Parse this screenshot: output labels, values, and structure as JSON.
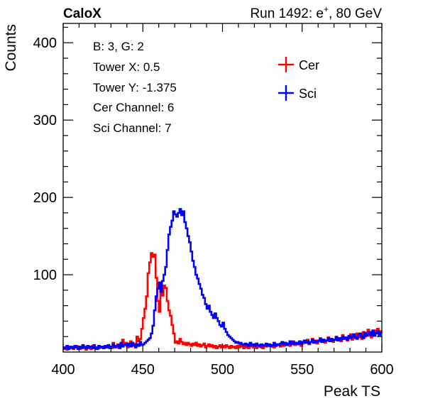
{
  "header": {
    "brand": "CaloX",
    "run_label": "Run 1492: e",
    "run_sup": "+",
    "run_energy": ", 80 GeV"
  },
  "info_box": {
    "lines": [
      "B: 3, G: 2",
      "Tower X: 0.5",
      "Tower Y: -1.375",
      "Cer Channel: 6",
      "Sci Channel: 7"
    ]
  },
  "colors": {
    "cer": "#ff0000",
    "sci": "#0000ff",
    "frame": "#000000"
  },
  "chart_data": {
    "type": "line",
    "style": "step-histogram",
    "xlabel": "Peak TS",
    "ylabel": "Counts",
    "xlim": [
      400,
      600
    ],
    "ylim": [
      0,
      425
    ],
    "x_ticks": [
      400,
      450,
      500,
      550,
      600
    ],
    "y_ticks": [
      100,
      200,
      300,
      400
    ],
    "legend": {
      "position": "top-right",
      "entries": [
        "Cer",
        "Sci"
      ]
    },
    "bin_width": 1,
    "x": [
      400,
      401,
      402,
      403,
      404,
      405,
      406,
      407,
      408,
      409,
      410,
      411,
      412,
      413,
      414,
      415,
      416,
      417,
      418,
      419,
      420,
      421,
      422,
      423,
      424,
      425,
      426,
      427,
      428,
      429,
      430,
      431,
      432,
      433,
      434,
      435,
      436,
      437,
      438,
      439,
      440,
      441,
      442,
      443,
      444,
      445,
      446,
      447,
      448,
      449,
      450,
      451,
      452,
      453,
      454,
      455,
      456,
      457,
      458,
      459,
      460,
      461,
      462,
      463,
      464,
      465,
      466,
      467,
      468,
      469,
      470,
      471,
      472,
      473,
      474,
      475,
      476,
      477,
      478,
      479,
      480,
      481,
      482,
      483,
      484,
      485,
      486,
      487,
      488,
      489,
      490,
      491,
      492,
      493,
      494,
      495,
      496,
      497,
      498,
      499,
      500,
      501,
      502,
      503,
      504,
      505,
      506,
      507,
      508,
      509,
      510,
      511,
      512,
      513,
      514,
      515,
      516,
      517,
      518,
      519,
      520,
      521,
      522,
      523,
      524,
      525,
      526,
      527,
      528,
      529,
      530,
      531,
      532,
      533,
      534,
      535,
      536,
      537,
      538,
      539,
      540,
      541,
      542,
      543,
      544,
      545,
      546,
      547,
      548,
      549,
      550,
      551,
      552,
      553,
      554,
      555,
      556,
      557,
      558,
      559,
      560,
      561,
      562,
      563,
      564,
      565,
      566,
      567,
      568,
      569,
      570,
      571,
      572,
      573,
      574,
      575,
      576,
      577,
      578,
      579,
      580,
      581,
      582,
      583,
      584,
      585,
      586,
      587,
      588,
      589,
      590,
      591,
      592,
      593,
      594,
      595,
      596,
      597,
      598,
      599
    ],
    "series": [
      {
        "name": "Cer",
        "color": "#ff0000",
        "values": [
          4,
          5,
          3,
          6,
          5,
          7,
          4,
          6,
          8,
          5,
          4,
          6,
          5,
          7,
          3,
          5,
          6,
          4,
          8,
          5,
          6,
          4,
          5,
          7,
          6,
          5,
          8,
          6,
          9,
          7,
          5,
          12,
          8,
          6,
          10,
          7,
          8,
          16,
          9,
          12,
          6,
          9,
          14,
          10,
          8,
          11,
          20,
          14,
          17,
          30,
          44,
          56,
          72,
          102,
          116,
          128,
          123,
          126,
          96,
          66,
          52,
          80,
          73,
          86,
          83,
          66,
          54,
          47,
          35,
          24,
          12,
          14,
          11,
          17,
          13,
          10,
          12,
          9,
          12,
          10,
          8,
          11,
          9,
          12,
          8,
          10,
          7,
          9,
          11,
          6,
          8,
          10,
          7,
          9,
          6,
          8,
          5,
          7,
          9,
          6,
          8,
          6,
          9,
          7,
          5,
          8,
          6,
          7,
          5,
          8,
          6,
          9,
          7,
          5,
          8,
          6,
          5,
          9,
          7,
          6,
          8,
          5,
          7,
          9,
          6,
          5,
          8,
          7,
          10,
          8,
          9,
          7,
          6,
          8,
          10,
          9,
          7,
          11,
          8,
          12,
          9,
          10,
          8,
          11,
          14,
          9,
          12,
          10,
          13,
          8,
          11,
          14,
          12,
          16,
          10,
          13,
          17,
          12,
          15,
          11,
          14,
          18,
          13,
          16,
          12,
          15,
          19,
          14,
          17,
          13,
          16,
          20,
          15,
          18,
          14,
          22,
          17,
          19,
          15,
          20,
          23,
          16,
          21,
          18,
          24,
          19,
          22,
          17,
          26,
          20,
          23,
          29,
          21,
          19,
          25,
          22,
          28,
          30,
          24,
          27
        ]
      },
      {
        "name": "Sci",
        "color": "#0000ff",
        "values": [
          6,
          5,
          8,
          4,
          7,
          6,
          5,
          8,
          6,
          4,
          7,
          5,
          9,
          6,
          5,
          8,
          6,
          7,
          5,
          9,
          6,
          4,
          8,
          6,
          7,
          5,
          8,
          6,
          9,
          5,
          7,
          10,
          6,
          8,
          9,
          5,
          12,
          7,
          9,
          10,
          8,
          11,
          7,
          12,
          9,
          6,
          10,
          8,
          13,
          9,
          10,
          12,
          14,
          16,
          18,
          24,
          34,
          54,
          72,
          82,
          90,
          78,
          92,
          100,
          110,
          132,
          152,
          162,
          170,
          182,
          178,
          175,
          180,
          185,
          177,
          182,
          168,
          160,
          150,
          142,
          130,
          118,
          110,
          100,
          95,
          88,
          82,
          74,
          70,
          62,
          56,
          60,
          52,
          48,
          44,
          50,
          44,
          40,
          35,
          33,
          38,
          30,
          26,
          22,
          20,
          18,
          16,
          14,
          12,
          13,
          11,
          12,
          10,
          9,
          11,
          10,
          8,
          12,
          9,
          10,
          8,
          11,
          9,
          7,
          10,
          8,
          9,
          11,
          8,
          10,
          7,
          9,
          12,
          8,
          10,
          9,
          11,
          13,
          10,
          12,
          9,
          11,
          14,
          10,
          13,
          11,
          12,
          10,
          14,
          11,
          13,
          15,
          12,
          14,
          11,
          13,
          16,
          12,
          14,
          13,
          15,
          17,
          13,
          16,
          14,
          15,
          18,
          14,
          17,
          15,
          16,
          19,
          15,
          18,
          16,
          20,
          17,
          19,
          16,
          21,
          18,
          20,
          23,
          19,
          17,
          22,
          24,
          20,
          18,
          25,
          21,
          23,
          26,
          22,
          28,
          21,
          24,
          27,
          22,
          25
        ]
      }
    ]
  }
}
